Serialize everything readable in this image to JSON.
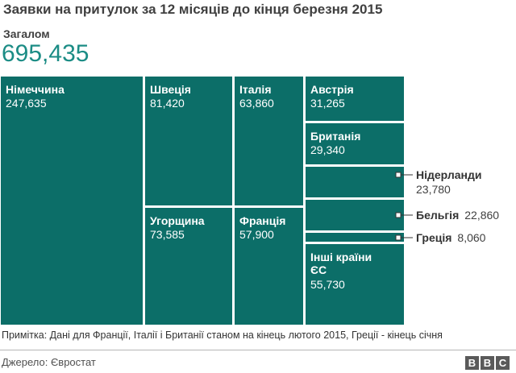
{
  "title": "Заявки на притулок за 12 місяців до кінця березня 2015",
  "total": {
    "label": "Загалом",
    "value": "695,435"
  },
  "note": "Примітка: Дані для Франції, Італії і Британії станом на кінець лютого 2015, Греції - кінець січня",
  "source": "Джерело: Євростат",
  "logo": [
    "B",
    "B",
    "C"
  ],
  "colors": {
    "cell": "#0c6e68",
    "total": "#1b8c85"
  },
  "chart_data": {
    "type": "treemap",
    "unit": "asylum applications",
    "total": 695435,
    "items": [
      {
        "name": "Німеччина",
        "value": 247635,
        "label": "247,635"
      },
      {
        "name": "Швеція",
        "value": 81420,
        "label": "81,420"
      },
      {
        "name": "Угорщина",
        "value": 73585,
        "label": "73,585"
      },
      {
        "name": "Італія",
        "value": 63860,
        "label": "63,860"
      },
      {
        "name": "Франція",
        "value": 57900,
        "label": "57,900"
      },
      {
        "name": "Австрія",
        "value": 31265,
        "label": "31,265"
      },
      {
        "name": "Британія",
        "value": 29340,
        "label": "29,340"
      },
      {
        "name": "Нідерланди",
        "value": 23780,
        "label": "23,780"
      },
      {
        "name": "Бельгія",
        "value": 22860,
        "label": "22,860"
      },
      {
        "name": "Греція",
        "value": 8060,
        "label": "8,060"
      },
      {
        "name": "Інші країни ЄС",
        "value": 55730,
        "label": "55,730"
      }
    ]
  }
}
